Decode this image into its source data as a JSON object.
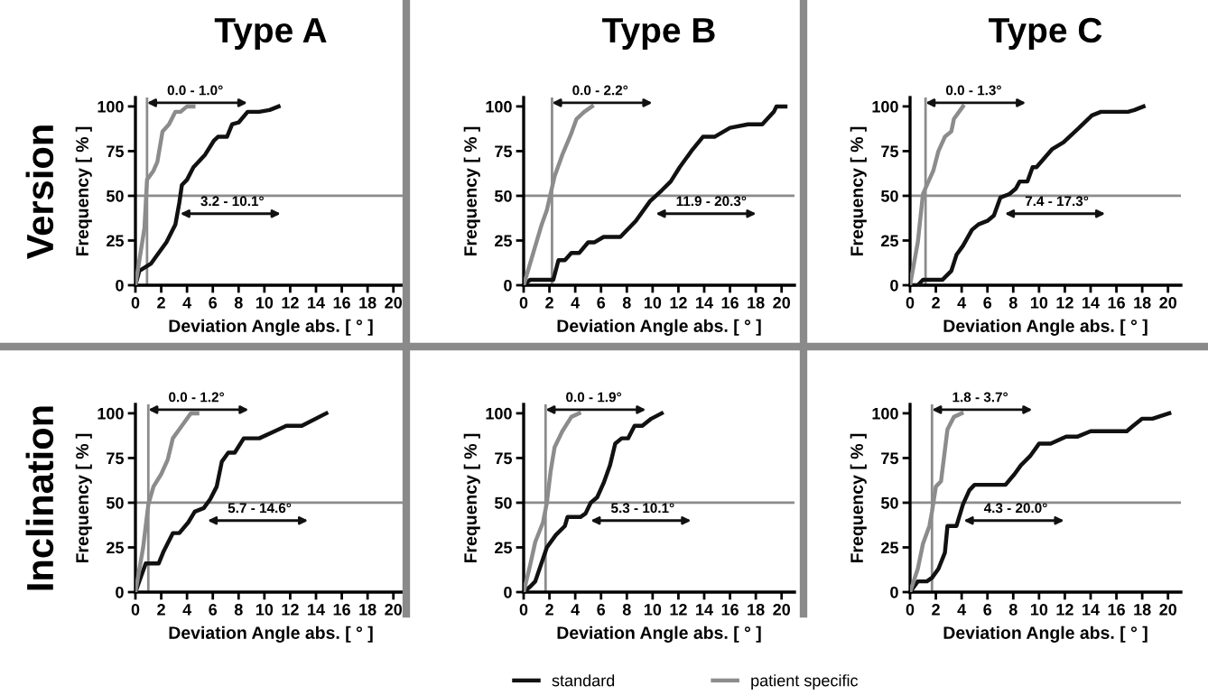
{
  "chart_data": [
    {
      "type": "line",
      "title": "Type A",
      "xlabel": "Deviation Angle abs. [ ° ]",
      "ylabel": "Frequency [ % ]",
      "xlim": [
        0,
        21
      ],
      "ylim": [
        0,
        105
      ],
      "xticks": [
        0,
        2,
        4,
        6,
        8,
        10,
        12,
        14,
        16,
        18,
        20
      ],
      "yticks": [
        0,
        25,
        50,
        75,
        100
      ],
      "grid": false,
      "legend": false,
      "marker": "none",
      "line_style": "solid",
      "series": [
        {
          "color": "#111111",
          "x": [
            0,
            0.3,
            1.2,
            1.7,
            2.4,
            3.1,
            3.4,
            3.6,
            4,
            4.5,
            5.4,
            6.1,
            6.4,
            7.1,
            7.5,
            8,
            8.7,
            9.6,
            10.4,
            11.1
          ],
          "values": [
            0,
            8,
            12,
            17,
            24,
            34,
            46,
            56,
            59,
            66,
            73,
            81,
            83,
            83,
            90,
            91,
            97,
            97,
            98,
            100
          ]
        },
        {
          "color": "#8c8c8c",
          "x": [
            0,
            0.7,
            0.9,
            1.4,
            1.7,
            2.1,
            2.6,
            3.1,
            3.5,
            4,
            4.5
          ],
          "values": [
            0,
            32,
            59,
            64,
            69,
            86,
            90,
            97,
            97,
            100,
            100
          ]
        }
      ],
      "ref_lines": [
        {
          "axis": "y",
          "value": 50,
          "color": "#8c8c8c"
        },
        {
          "axis": "x",
          "value": 0.9,
          "color": "#8c8c8c"
        }
      ],
      "annotations": [
        "Version",
        "0.0 - 1.0°",
        "3.2 - 10.1°"
      ]
    },
    {
      "type": "line",
      "title": "Type B",
      "xlabel": "Deviation Angle abs. [ ° ]",
      "ylabel": "Frequency [ % ]",
      "xlim": [
        0,
        21
      ],
      "ylim": [
        0,
        105
      ],
      "xticks": [
        0,
        2,
        4,
        6,
        8,
        10,
        12,
        14,
        16,
        18,
        20
      ],
      "yticks": [
        0,
        25,
        50,
        75,
        100
      ],
      "grid": false,
      "legend": false,
      "marker": "none",
      "line_style": "solid",
      "series": [
        {
          "color": "#111111",
          "x": [
            0,
            0.5,
            2.3,
            2.7,
            3.2,
            3.7,
            4.3,
            5,
            5.5,
            6.2,
            7.5,
            8.7,
            9.8,
            10.7,
            11.4,
            12.1,
            13,
            13.9,
            14.8,
            16,
            17.4,
            18.5,
            19.4,
            19.6,
            20.3
          ],
          "values": [
            0,
            3,
            3,
            14,
            14,
            18,
            18,
            24,
            24,
            27,
            27,
            36,
            47,
            53,
            58,
            66,
            75,
            83,
            83,
            88,
            90,
            90,
            97,
            100,
            100
          ]
        },
        {
          "color": "#8c8c8c",
          "x": [
            0,
            0.7,
            1.4,
            1.8,
            2.4,
            3,
            3.7,
            4.1,
            4.7,
            5.3
          ],
          "values": [
            0,
            17,
            34,
            42,
            61,
            73,
            85,
            93,
            97,
            100
          ]
        }
      ],
      "ref_lines": [
        {
          "axis": "y",
          "value": 50,
          "color": "#8c8c8c"
        },
        {
          "axis": "x",
          "value": 2.2,
          "color": "#8c8c8c"
        }
      ],
      "annotations": [
        "0.0 - 2.2°",
        "11.9 - 20.3°"
      ]
    },
    {
      "type": "line",
      "title": "Type C",
      "xlabel": "Deviation Angle abs. [ ° ]",
      "ylabel": "Frequency [ % ]",
      "xlim": [
        0,
        21
      ],
      "ylim": [
        0,
        105
      ],
      "xticks": [
        0,
        2,
        4,
        6,
        8,
        10,
        12,
        14,
        16,
        18,
        20
      ],
      "yticks": [
        0,
        25,
        50,
        75,
        100
      ],
      "grid": false,
      "legend": false,
      "marker": "none",
      "line_style": "solid",
      "series": [
        {
          "color": "#111111",
          "x": [
            0,
            0.6,
            1,
            2.5,
            3.2,
            3.6,
            4.1,
            4.8,
            5.3,
            6,
            6.5,
            7,
            7.7,
            8.2,
            8.5,
            9.1,
            9.5,
            9.8,
            11,
            11.9,
            13.1,
            14.1,
            14.8,
            16.9,
            17.4,
            18.1
          ],
          "values": [
            0,
            0,
            3,
            3,
            8,
            17,
            22,
            31,
            34,
            36,
            39,
            49,
            51,
            54,
            58,
            58,
            66,
            66,
            76,
            80,
            88,
            95,
            97,
            97,
            98,
            100
          ]
        },
        {
          "color": "#8c8c8c",
          "x": [
            0,
            0.6,
            1,
            1.8,
            2.2,
            2.7,
            3.2,
            3.4,
            3.9,
            4.1
          ],
          "values": [
            0,
            24,
            51,
            64,
            75,
            83,
            86,
            93,
            98,
            100
          ]
        }
      ],
      "ref_lines": [
        {
          "axis": "y",
          "value": 50,
          "color": "#8c8c8c"
        },
        {
          "axis": "x",
          "value": 1.2,
          "color": "#8c8c8c"
        }
      ],
      "annotations": [
        "0.0 - 1.3°",
        "7.4 - 17.3°"
      ]
    },
    {
      "type": "line",
      "xlabel": "Deviation Angle abs. [ ° ]",
      "ylabel": "Frequency [ % ]",
      "xlim": [
        0,
        21
      ],
      "ylim": [
        0,
        105
      ],
      "xticks": [
        0,
        2,
        4,
        6,
        8,
        10,
        12,
        14,
        16,
        18,
        20
      ],
      "yticks": [
        0,
        25,
        50,
        75,
        100
      ],
      "grid": false,
      "legend": false,
      "marker": "none",
      "line_style": "solid",
      "series": [
        {
          "color": "#111111",
          "x": [
            0,
            0.3,
            0.8,
            1.8,
            2.2,
            2.9,
            3.4,
            4.1,
            4.6,
            5.3,
            5.8,
            6.3,
            6.7,
            7.2,
            7.7,
            8.4,
            9.6,
            10.8,
            11.7,
            12.9,
            14.8
          ],
          "values": [
            0,
            6,
            16,
            16,
            23,
            33,
            33,
            39,
            45,
            47,
            52,
            59,
            73,
            78,
            78,
            86,
            86,
            90,
            93,
            93,
            100
          ]
        },
        {
          "color": "#8c8c8c",
          "x": [
            0,
            0.6,
            1,
            1.4,
            2,
            2.5,
            2.9,
            3.6,
            4.3,
            4.8
          ],
          "values": [
            0,
            25,
            49,
            59,
            66,
            74,
            86,
            93,
            100,
            100
          ]
        }
      ],
      "ref_lines": [
        {
          "axis": "y",
          "value": 50,
          "color": "#8c8c8c"
        },
        {
          "axis": "x",
          "value": 1.0,
          "color": "#8c8c8c"
        }
      ],
      "annotations": [
        "Inclination",
        "0.0 - 1.2°",
        "5.7 - 14.6°"
      ]
    },
    {
      "type": "line",
      "xlabel": "Deviation Angle abs. [ ° ]",
      "ylabel": "Frequency [ % ]",
      "xlim": [
        0,
        21
      ],
      "ylim": [
        0,
        105
      ],
      "xticks": [
        0,
        2,
        4,
        6,
        8,
        10,
        12,
        14,
        16,
        18,
        20
      ],
      "yticks": [
        0,
        25,
        50,
        75,
        100
      ],
      "grid": false,
      "legend": "bottom",
      "marker": "none",
      "line_style": "solid",
      "series": [
        {
          "name": "standard",
          "color": "#111111",
          "x": [
            0,
            0.5,
            0.9,
            1.8,
            2.5,
            3.2,
            3.4,
            4.4,
            4.8,
            5.2,
            5.7,
            6.2,
            6.7,
            7.1,
            7.6,
            8.1,
            8.6,
            9.2,
            9.9,
            10.7
          ],
          "values": [
            0,
            3,
            6,
            25,
            32,
            37,
            42,
            42,
            44,
            50,
            53,
            61,
            71,
            83,
            86,
            86,
            93,
            93,
            97,
            100
          ]
        },
        {
          "name": "patient specific",
          "color": "#8c8c8c",
          "x": [
            0,
            0.5,
            0.9,
            1.5,
            1.8,
            2.1,
            2.4,
            3,
            3.7,
            4.3
          ],
          "values": [
            0,
            15,
            28,
            39,
            50,
            68,
            81,
            90,
            98,
            100
          ]
        }
      ],
      "ref_lines": [
        {
          "axis": "y",
          "value": 50,
          "color": "#8c8c8c"
        },
        {
          "axis": "x",
          "value": 1.7,
          "color": "#8c8c8c"
        }
      ],
      "annotations": [
        "0.0 - 1.9°",
        "5.3 - 10.1°"
      ]
    },
    {
      "type": "line",
      "xlabel": "Deviation Angle abs. [ ° ]",
      "ylabel": "Frequency [ % ]",
      "xlim": [
        0,
        21
      ],
      "ylim": [
        0,
        105
      ],
      "xticks": [
        0,
        2,
        4,
        6,
        8,
        10,
        12,
        14,
        16,
        18,
        20
      ],
      "yticks": [
        0,
        25,
        50,
        75,
        100
      ],
      "grid": false,
      "legend": false,
      "marker": "none",
      "line_style": "solid",
      "series": [
        {
          "color": "#111111",
          "x": [
            0,
            0.6,
            1.3,
            1.7,
            2.2,
            2.7,
            2.9,
            3.6,
            4.1,
            4.6,
            5,
            7.4,
            8.1,
            8.6,
            9.3,
            10,
            10.9,
            12.1,
            13,
            14,
            16.8,
            17.3,
            18,
            18.8,
            20.1
          ],
          "values": [
            0,
            6,
            6,
            8,
            13,
            22,
            37,
            37,
            49,
            57,
            60,
            60,
            66,
            71,
            76,
            83,
            83,
            87,
            87,
            90,
            90,
            93,
            97,
            97,
            100
          ]
        },
        {
          "color": "#8c8c8c",
          "x": [
            0,
            0.6,
            1,
            1.5,
            1.7,
            2,
            2.4,
            2.9,
            3.4,
            4
          ],
          "values": [
            0,
            13,
            27,
            37,
            45,
            59,
            62,
            91,
            98,
            100
          ]
        }
      ],
      "ref_lines": [
        {
          "axis": "y",
          "value": 50,
          "color": "#8c8c8c"
        },
        {
          "axis": "x",
          "value": 1.7,
          "color": "#8c8c8c"
        }
      ],
      "annotations": [
        "1.8 - 3.7°",
        "4.3 - 20.0°"
      ]
    }
  ]
}
